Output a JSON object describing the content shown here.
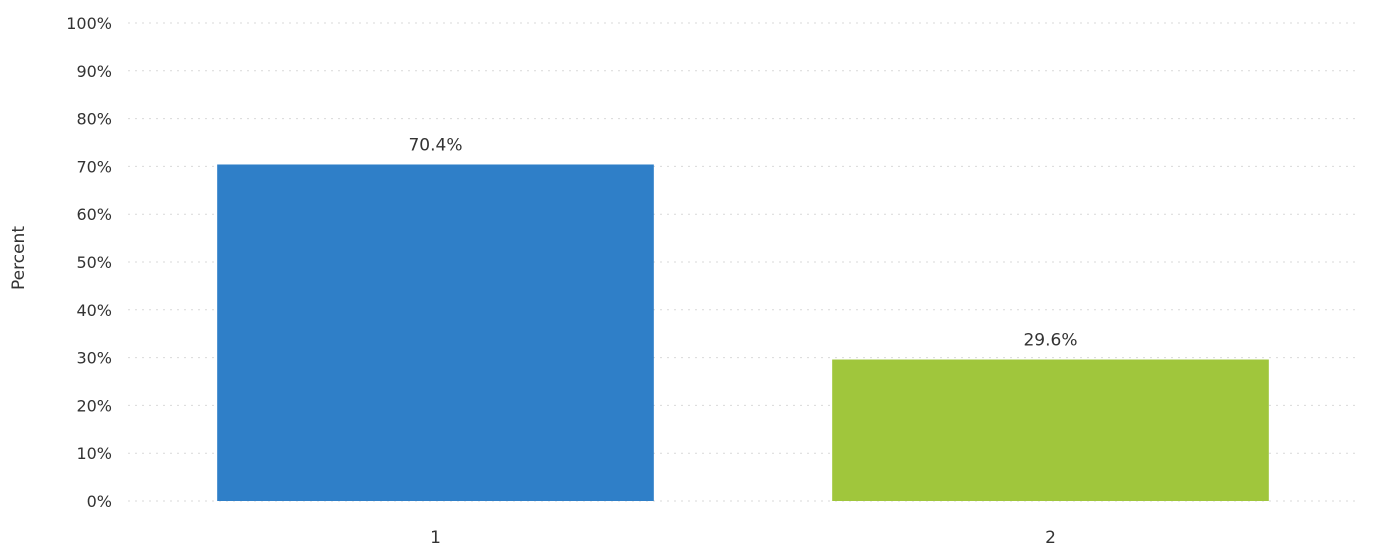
{
  "chart_data": {
    "type": "bar",
    "categories": [
      "1",
      "2"
    ],
    "values": [
      70.4,
      29.6
    ],
    "data_labels": [
      "70.4%",
      "29.6%"
    ],
    "colors": [
      "#2f7fc8",
      "#a0c63c"
    ],
    "ylabel": "Percent",
    "ylim": [
      0,
      100
    ],
    "y_ticks": [
      0,
      10,
      20,
      30,
      40,
      50,
      60,
      70,
      80,
      90,
      100
    ],
    "y_tick_labels": [
      "0%",
      "10%",
      "20%",
      "30%",
      "40%",
      "50%",
      "60%",
      "70%",
      "80%",
      "90%",
      "100%"
    ],
    "grid": true,
    "legend": "none"
  }
}
